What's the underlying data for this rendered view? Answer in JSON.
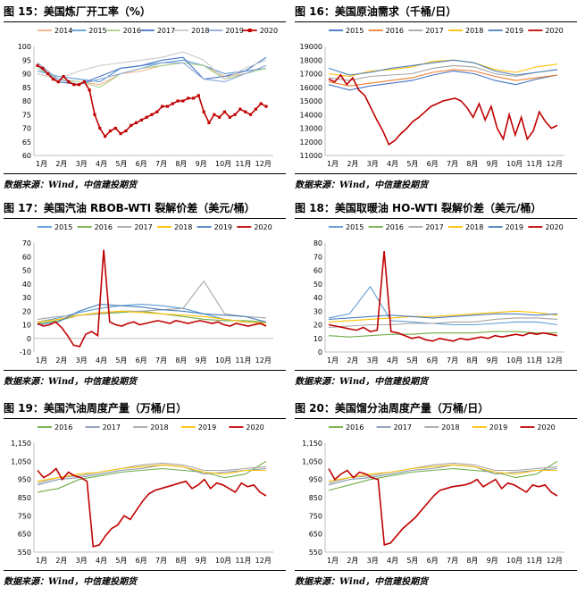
{
  "source_text": "数据来源：Wind，中信建投期货",
  "months": [
    "1月",
    "2月",
    "3月",
    "4月",
    "5月",
    "6月",
    "7月",
    "8月",
    "9月",
    "10月",
    "11月",
    "12月"
  ],
  "colors": {
    "2014": "#f4b183",
    "2015": "#4472c4",
    "2016": "#70ad47",
    "2017": "#a5a5a5",
    "2018": "#ffc000",
    "2019": "#4a7ebb",
    "2020": "#c00000",
    "2015b": "#5b9bd5",
    "2016o": "#ed7d31",
    "2018b": "#b4c7e7"
  },
  "panels": [
    {
      "title": "图 15：美国炼厂开工率（%）",
      "chart_data": {
        "type": "line",
        "ylim": [
          60,
          100
        ],
        "yticks": [
          60,
          65,
          70,
          75,
          80,
          85,
          90,
          95,
          100
        ],
        "grid": false,
        "legend": "top",
        "series": [
          {
            "name": "2014",
            "color": "#f4b183",
            "values": [
              90,
              88,
              87,
              86,
              90,
              91,
              93,
              94,
              93,
              89,
              90,
              93
            ]
          },
          {
            "name": "2015",
            "color": "#5b9bd5",
            "values": [
              91,
              89,
              88,
              87,
              92,
              93,
              94,
              95,
              93,
              90,
              91,
              92
            ]
          },
          {
            "name": "2016",
            "color": "#a9d18e",
            "values": [
              92,
              88,
              87,
              85,
              90,
              92,
              93,
              94,
              93,
              88,
              90,
              92
            ]
          },
          {
            "name": "2017",
            "color": "#4472c4",
            "values": [
              93,
              87,
              86,
              89,
              92,
              93,
              95,
              96,
              88,
              89,
              91,
              96
            ]
          },
          {
            "name": "2018",
            "color": "#c9c9c9",
            "values": [
              90,
              88,
              91,
              93,
              94,
              95,
              96,
              98,
              95,
              88,
              92,
              95
            ]
          },
          {
            "name": "2019",
            "color": "#8faadc",
            "values": [
              94,
              88,
              86,
              88,
              90,
              92,
              94,
              94,
              88,
              87,
              90,
              93
            ]
          },
          {
            "name": "2020",
            "color": "#c00000",
            "marker": true,
            "values": [
              93,
              92,
              90,
              88,
              87,
              89,
              87,
              86,
              86,
              87,
              84,
              75,
              70,
              67,
              69,
              70,
              68,
              69,
              71,
              72,
              73,
              74,
              75,
              76,
              78,
              78,
              79,
              80,
              80,
              81,
              81,
              82,
              76,
              72,
              75,
              74,
              76,
              74,
              75,
              77,
              76,
              75,
              77,
              79,
              78
            ]
          }
        ]
      }
    },
    {
      "title": "图 16：美国原油需求（千桶/日）",
      "chart_data": {
        "type": "line",
        "ylim": [
          11000,
          19000
        ],
        "yticks": [
          11000,
          12000,
          13000,
          14000,
          15000,
          16000,
          17000,
          18000,
          19000
        ],
        "grid": false,
        "legend": "top",
        "series": [
          {
            "name": "2015",
            "color": "#4472c4",
            "values": [
              16200,
              15800,
              16100,
              16300,
              16500,
              16900,
              17200,
              17000,
              16500,
              16200,
              16600,
              16900
            ]
          },
          {
            "name": "2016",
            "color": "#ed7d31",
            "values": [
              16400,
              16100,
              16300,
              16500,
              16700,
              17100,
              17300,
              17200,
              16800,
              16500,
              16700,
              16900
            ]
          },
          {
            "name": "2017",
            "color": "#a5a5a5",
            "values": [
              16700,
              16500,
              16800,
              16900,
              17000,
              17400,
              17600,
              17500,
              17000,
              16800,
              17100,
              17300
            ]
          },
          {
            "name": "2018",
            "color": "#ffc000",
            "values": [
              17000,
              16800,
              17200,
              17300,
              17500,
              17900,
              18000,
              17800,
              17300,
              17100,
              17500,
              17700
            ]
          },
          {
            "name": "2019",
            "color": "#4a7ebb",
            "values": [
              17400,
              16900,
              17100,
              17400,
              17600,
              17800,
              18000,
              17800,
              17200,
              16900,
              17100,
              17300
            ]
          },
          {
            "name": "2020",
            "color": "#c00000",
            "values": [
              16600,
              16400,
              16900,
              16200,
              16700,
              15800,
              15400,
              14500,
              13600,
              12800,
              11800,
              12100,
              12600,
              13000,
              13500,
              13800,
              14200,
              14600,
              14800,
              15000,
              15100,
              15200,
              15000,
              14500,
              13800,
              14800,
              13600,
              14600,
              13000,
              12200,
              14000,
              12500,
              13800,
              12200,
              12800,
              14200,
              13500,
              13000,
              13200
            ]
          }
        ]
      }
    },
    {
      "title": "图 17：美国汽油 RBOB-WTI 裂解价差（美元/桶）",
      "chart_data": {
        "type": "line",
        "ylim": [
          -10,
          70
        ],
        "yticks": [
          -10,
          0,
          10,
          20,
          30,
          40,
          50,
          60,
          70
        ],
        "grid": false,
        "legend": "top",
        "series": [
          {
            "name": "2015",
            "color": "#5b9bd5",
            "values": [
              12,
              15,
              19,
              22,
              24,
              25,
              24,
              22,
              18,
              14,
              12,
              11
            ]
          },
          {
            "name": "2016",
            "color": "#70ad47",
            "values": [
              11,
              13,
              17,
              18,
              19,
              20,
              18,
              16,
              14,
              13,
              13,
              12
            ]
          },
          {
            "name": "2017",
            "color": "#a5a5a5",
            "values": [
              14,
              16,
              17,
              18,
              20,
              20,
              21,
              22,
              42,
              18,
              16,
              15
            ]
          },
          {
            "name": "2018",
            "color": "#ffc000",
            "values": [
              12,
              14,
              17,
              19,
              20,
              19,
              18,
              17,
              16,
              14,
              12,
              11
            ]
          },
          {
            "name": "2019",
            "color": "#4a7ebb",
            "values": [
              10,
              12,
              20,
              25,
              24,
              23,
              21,
              20,
              18,
              17,
              16,
              12
            ]
          },
          {
            "name": "2020",
            "color": "#c00000",
            "values": [
              11,
              9,
              10,
              12,
              8,
              2,
              -5,
              -6,
              3,
              5,
              2,
              65,
              12,
              10,
              9,
              11,
              12,
              10,
              11,
              12,
              13,
              12,
              11,
              13,
              12,
              11,
              12,
              13,
              12,
              11,
              12,
              10,
              9,
              11,
              10,
              9,
              10,
              11,
              9
            ]
          }
        ]
      }
    },
    {
      "title": "图 18：美国取暖油 HO-WTI 裂解价差（美元/桶）",
      "chart_data": {
        "type": "line",
        "ylim": [
          0,
          80
        ],
        "yticks": [
          0,
          10,
          20,
          30,
          40,
          50,
          60,
          70,
          80
        ],
        "grid": false,
        "legend": "top",
        "series": [
          {
            "name": "2015",
            "color": "#5b9bd5",
            "values": [
              25,
              28,
              48,
              23,
              22,
              21,
              20,
              20,
              21,
              22,
              22,
              20
            ]
          },
          {
            "name": "2016",
            "color": "#70ad47",
            "values": [
              12,
              11,
              12,
              13,
              13,
              14,
              14,
              14,
              15,
              15,
              14,
              14
            ]
          },
          {
            "name": "2017",
            "color": "#a5a5a5",
            "values": [
              18,
              19,
              20,
              20,
              21,
              21,
              22,
              22,
              24,
              25,
              25,
              24
            ]
          },
          {
            "name": "2018",
            "color": "#ffc000",
            "values": [
              22,
              23,
              24,
              25,
              26,
              26,
              27,
              28,
              29,
              30,
              29,
              27
            ]
          },
          {
            "name": "2019",
            "color": "#4a7ebb",
            "values": [
              24,
              25,
              26,
              27,
              26,
              25,
              26,
              27,
              28,
              28,
              27,
              28
            ]
          },
          {
            "name": "2020",
            "color": "#c00000",
            "values": [
              20,
              19,
              18,
              17,
              16,
              18,
              15,
              16,
              74,
              15,
              14,
              12,
              10,
              11,
              9,
              8,
              10,
              9,
              8,
              10,
              9,
              10,
              11,
              10,
              12,
              11,
              12,
              13,
              12,
              14,
              13,
              14,
              13,
              12
            ]
          }
        ]
      }
    },
    {
      "title": "图 19：美国汽油周度产量（万桶/日）",
      "chart_data": {
        "type": "line",
        "ylim": [
          550,
          1150
        ],
        "yticks": [
          550,
          650,
          750,
          850,
          950,
          1050,
          1150
        ],
        "ytick_labels": [
          "550",
          "650",
          "750",
          "850",
          "950",
          "1,050",
          "1,150"
        ],
        "grid": false,
        "legend": "top",
        "series": [
          {
            "name": "2016",
            "color": "#70ad47",
            "values": [
              880,
              900,
              950,
              970,
              990,
              1000,
              1010,
              1000,
              990,
              960,
              980,
              1050
            ]
          },
          {
            "name": "2017",
            "color": "#8497b0",
            "values": [
              920,
              950,
              960,
              980,
              1000,
              1010,
              1030,
              1020,
              980,
              990,
              1000,
              1010
            ]
          },
          {
            "name": "2018",
            "color": "#a5a5a5",
            "values": [
              930,
              960,
              970,
              990,
              1010,
              1030,
              1040,
              1030,
              1000,
              1000,
              1010,
              1020
            ]
          },
          {
            "name": "2019",
            "color": "#ffc000",
            "values": [
              940,
              960,
              980,
              990,
              1010,
              1020,
              1030,
              1020,
              990,
              980,
              1000,
              1000
            ]
          },
          {
            "name": "2020",
            "color": "#c00000",
            "values": [
              1000,
              960,
              980,
              1010,
              950,
              990,
              970,
              960,
              940,
              580,
              590,
              640,
              680,
              700,
              750,
              730,
              780,
              830,
              870,
              890,
              900,
              910,
              920,
              930,
              940,
              900,
              920,
              950,
              900,
              930,
              920,
              900,
              880,
              930,
              910,
              920,
              880,
              860
            ]
          }
        ]
      }
    },
    {
      "title": "图 20：美国馏分油周度产量（万桶/日）",
      "chart_data": {
        "type": "line",
        "ylim": [
          550,
          1150
        ],
        "yticks": [
          550,
          650,
          750,
          850,
          950,
          1050,
          1150
        ],
        "ytick_labels": [
          "550",
          "650",
          "750",
          "850",
          "950",
          "1,050",
          "1,150"
        ],
        "grid": false,
        "legend": "top",
        "series": [
          {
            "name": "2016",
            "color": "#70ad47",
            "values": [
              890,
              920,
              950,
              970,
              990,
              1000,
              1010,
              1000,
              990,
              960,
              980,
              1050
            ]
          },
          {
            "name": "2017",
            "color": "#8497b0",
            "values": [
              920,
              950,
              960,
              980,
              1000,
              1010,
              1030,
              1020,
              980,
              990,
              1000,
              1010
            ]
          },
          {
            "name": "2018",
            "color": "#a5a5a5",
            "values": [
              930,
              960,
              970,
              990,
              1010,
              1030,
              1040,
              1030,
              1000,
              1000,
              1010,
              1020
            ]
          },
          {
            "name": "2019",
            "color": "#ffc000",
            "values": [
              940,
              960,
              980,
              990,
              1010,
              1020,
              1030,
              1020,
              990,
              980,
              1000,
              1000
            ]
          },
          {
            "name": "2020",
            "color": "#c00000",
            "values": [
              1010,
              950,
              980,
              1000,
              960,
              990,
              980,
              960,
              950,
              590,
              600,
              640,
              680,
              710,
              740,
              780,
              820,
              860,
              890,
              900,
              910,
              915,
              920,
              930,
              950,
              910,
              930,
              950,
              900,
              930,
              920,
              900,
              880,
              920,
              910,
              920,
              880,
              860
            ]
          }
        ]
      }
    }
  ]
}
